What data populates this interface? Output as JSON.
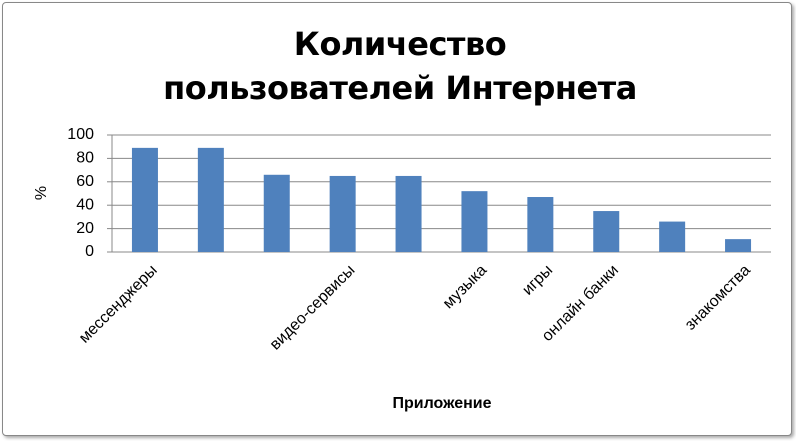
{
  "chart_data": {
    "type": "bar",
    "title": "Количество пользователей Интернета",
    "x_label": "Приложение",
    "y_label": "%",
    "categories": [
      "мессенджеры",
      null,
      null,
      "видео-сервисы",
      null,
      "музыка",
      "игры",
      "онлайн банки",
      null,
      "знакомства"
    ],
    "values": [
      89,
      89,
      66,
      65,
      65,
      52,
      47,
      35,
      26,
      11
    ],
    "color": "#4f81bd",
    "ylim": [
      0,
      100
    ],
    "yticks": [
      0,
      20,
      40,
      60,
      80,
      100
    ],
    "grid": true
  }
}
